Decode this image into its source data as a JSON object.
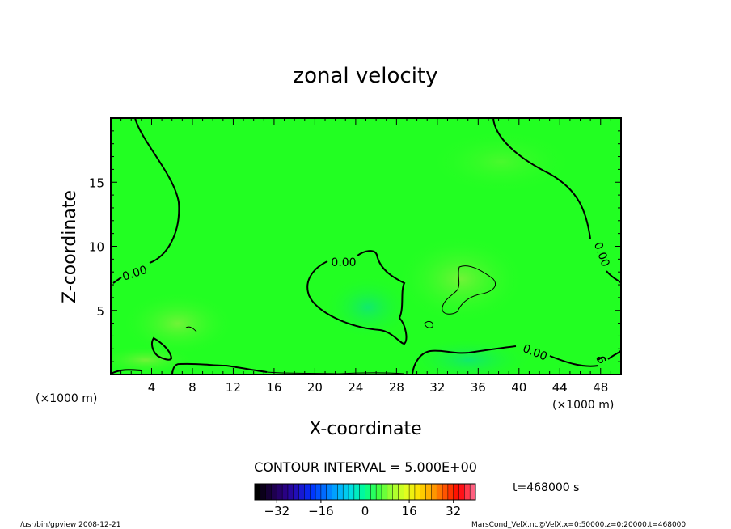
{
  "chart_data": {
    "type": "contour",
    "title": "zonal velocity",
    "xlabel": "X-coordinate",
    "ylabel": "Z-coordinate",
    "x_unit": "(×1000 m)",
    "y_unit": "(×1000 m)",
    "xlim": [
      0,
      50
    ],
    "ylim": [
      0,
      20
    ],
    "x_ticks": [
      4,
      8,
      12,
      16,
      20,
      24,
      28,
      32,
      36,
      40,
      44,
      48
    ],
    "y_ticks": [
      5,
      10,
      15
    ],
    "contour_interval_text": "CONTOUR INTERVAL = 5.000E+00",
    "contour_labels": [
      "0.00",
      "0.00",
      "0.00",
      "0.00",
      "0"
    ],
    "time_text": "t=468000 s",
    "colorbar": {
      "min": -40,
      "max": 40,
      "ticks": [
        -32,
        -16,
        0,
        16,
        32
      ],
      "colors": [
        "#000000",
        "#1a0040",
        "#2a0080",
        "#2010c0",
        "#0030ff",
        "#0070ff",
        "#00b0ff",
        "#00e0e0",
        "#00ff90",
        "#40ff40",
        "#a0ff30",
        "#e0ff20",
        "#ffe000",
        "#ffa000",
        "#ff5000",
        "#ff0000",
        "#ff6080"
      ]
    },
    "field_colors": {
      "background": "#22ff22",
      "slightly_positive": "#7af23a",
      "slightly_negative": "#10e870"
    },
    "footer_left": "/usr/bin/gpview   2008-12-21",
    "footer_right": "MarsCond_VelX.nc@VelX,x=0:50000,z=0:20000,t=468000"
  }
}
